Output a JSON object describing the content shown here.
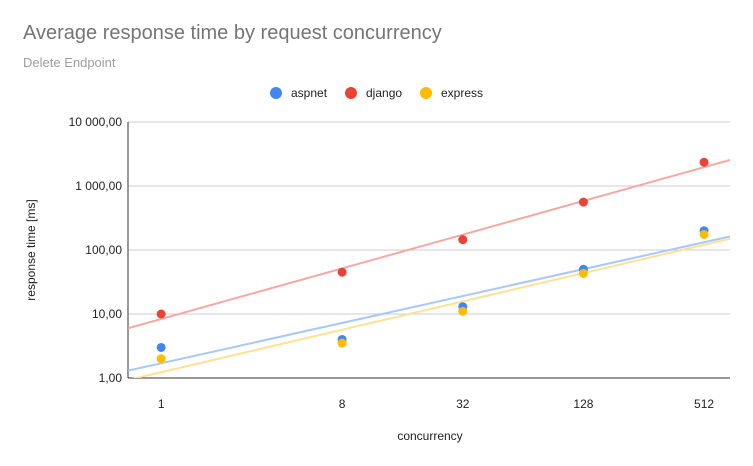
{
  "chart_data": {
    "type": "scatter",
    "title": "Average response time by request concurrency",
    "subtitle": "Delete Endpoint",
    "xlabel": "concurrency",
    "ylabel": "response time [ms]",
    "x_scale": "log2",
    "y_scale": "log10",
    "x_ticks": [
      1,
      8,
      32,
      128,
      512
    ],
    "x_tick_labels": [
      "1",
      "8",
      "32",
      "128",
      "512"
    ],
    "y_ticks": [
      1,
      10,
      100,
      1000,
      10000
    ],
    "y_tick_labels": [
      "1,00",
      "10,00",
      "100,00",
      "1 000,00",
      "10 000,00"
    ],
    "ylim": [
      1,
      10000
    ],
    "legend_position": "top",
    "trendlines": true,
    "series": [
      {
        "name": "aspnet",
        "color": "#4285f4",
        "trend_color": "#a8c7fa",
        "x": [
          1,
          8,
          32,
          128,
          512
        ],
        "y": [
          3.0,
          4.0,
          13,
          50,
          200
        ]
      },
      {
        "name": "django",
        "color": "#ea4335",
        "trend_color": "#f4a8a1",
        "x": [
          1,
          8,
          32,
          128,
          512
        ],
        "y": [
          10,
          45,
          145,
          560,
          2350
        ]
      },
      {
        "name": "express",
        "color": "#fbbc04",
        "trend_color": "#fde293",
        "x": [
          1,
          8,
          32,
          128,
          512
        ],
        "y": [
          2.0,
          3.5,
          11,
          43,
          175
        ]
      }
    ]
  }
}
